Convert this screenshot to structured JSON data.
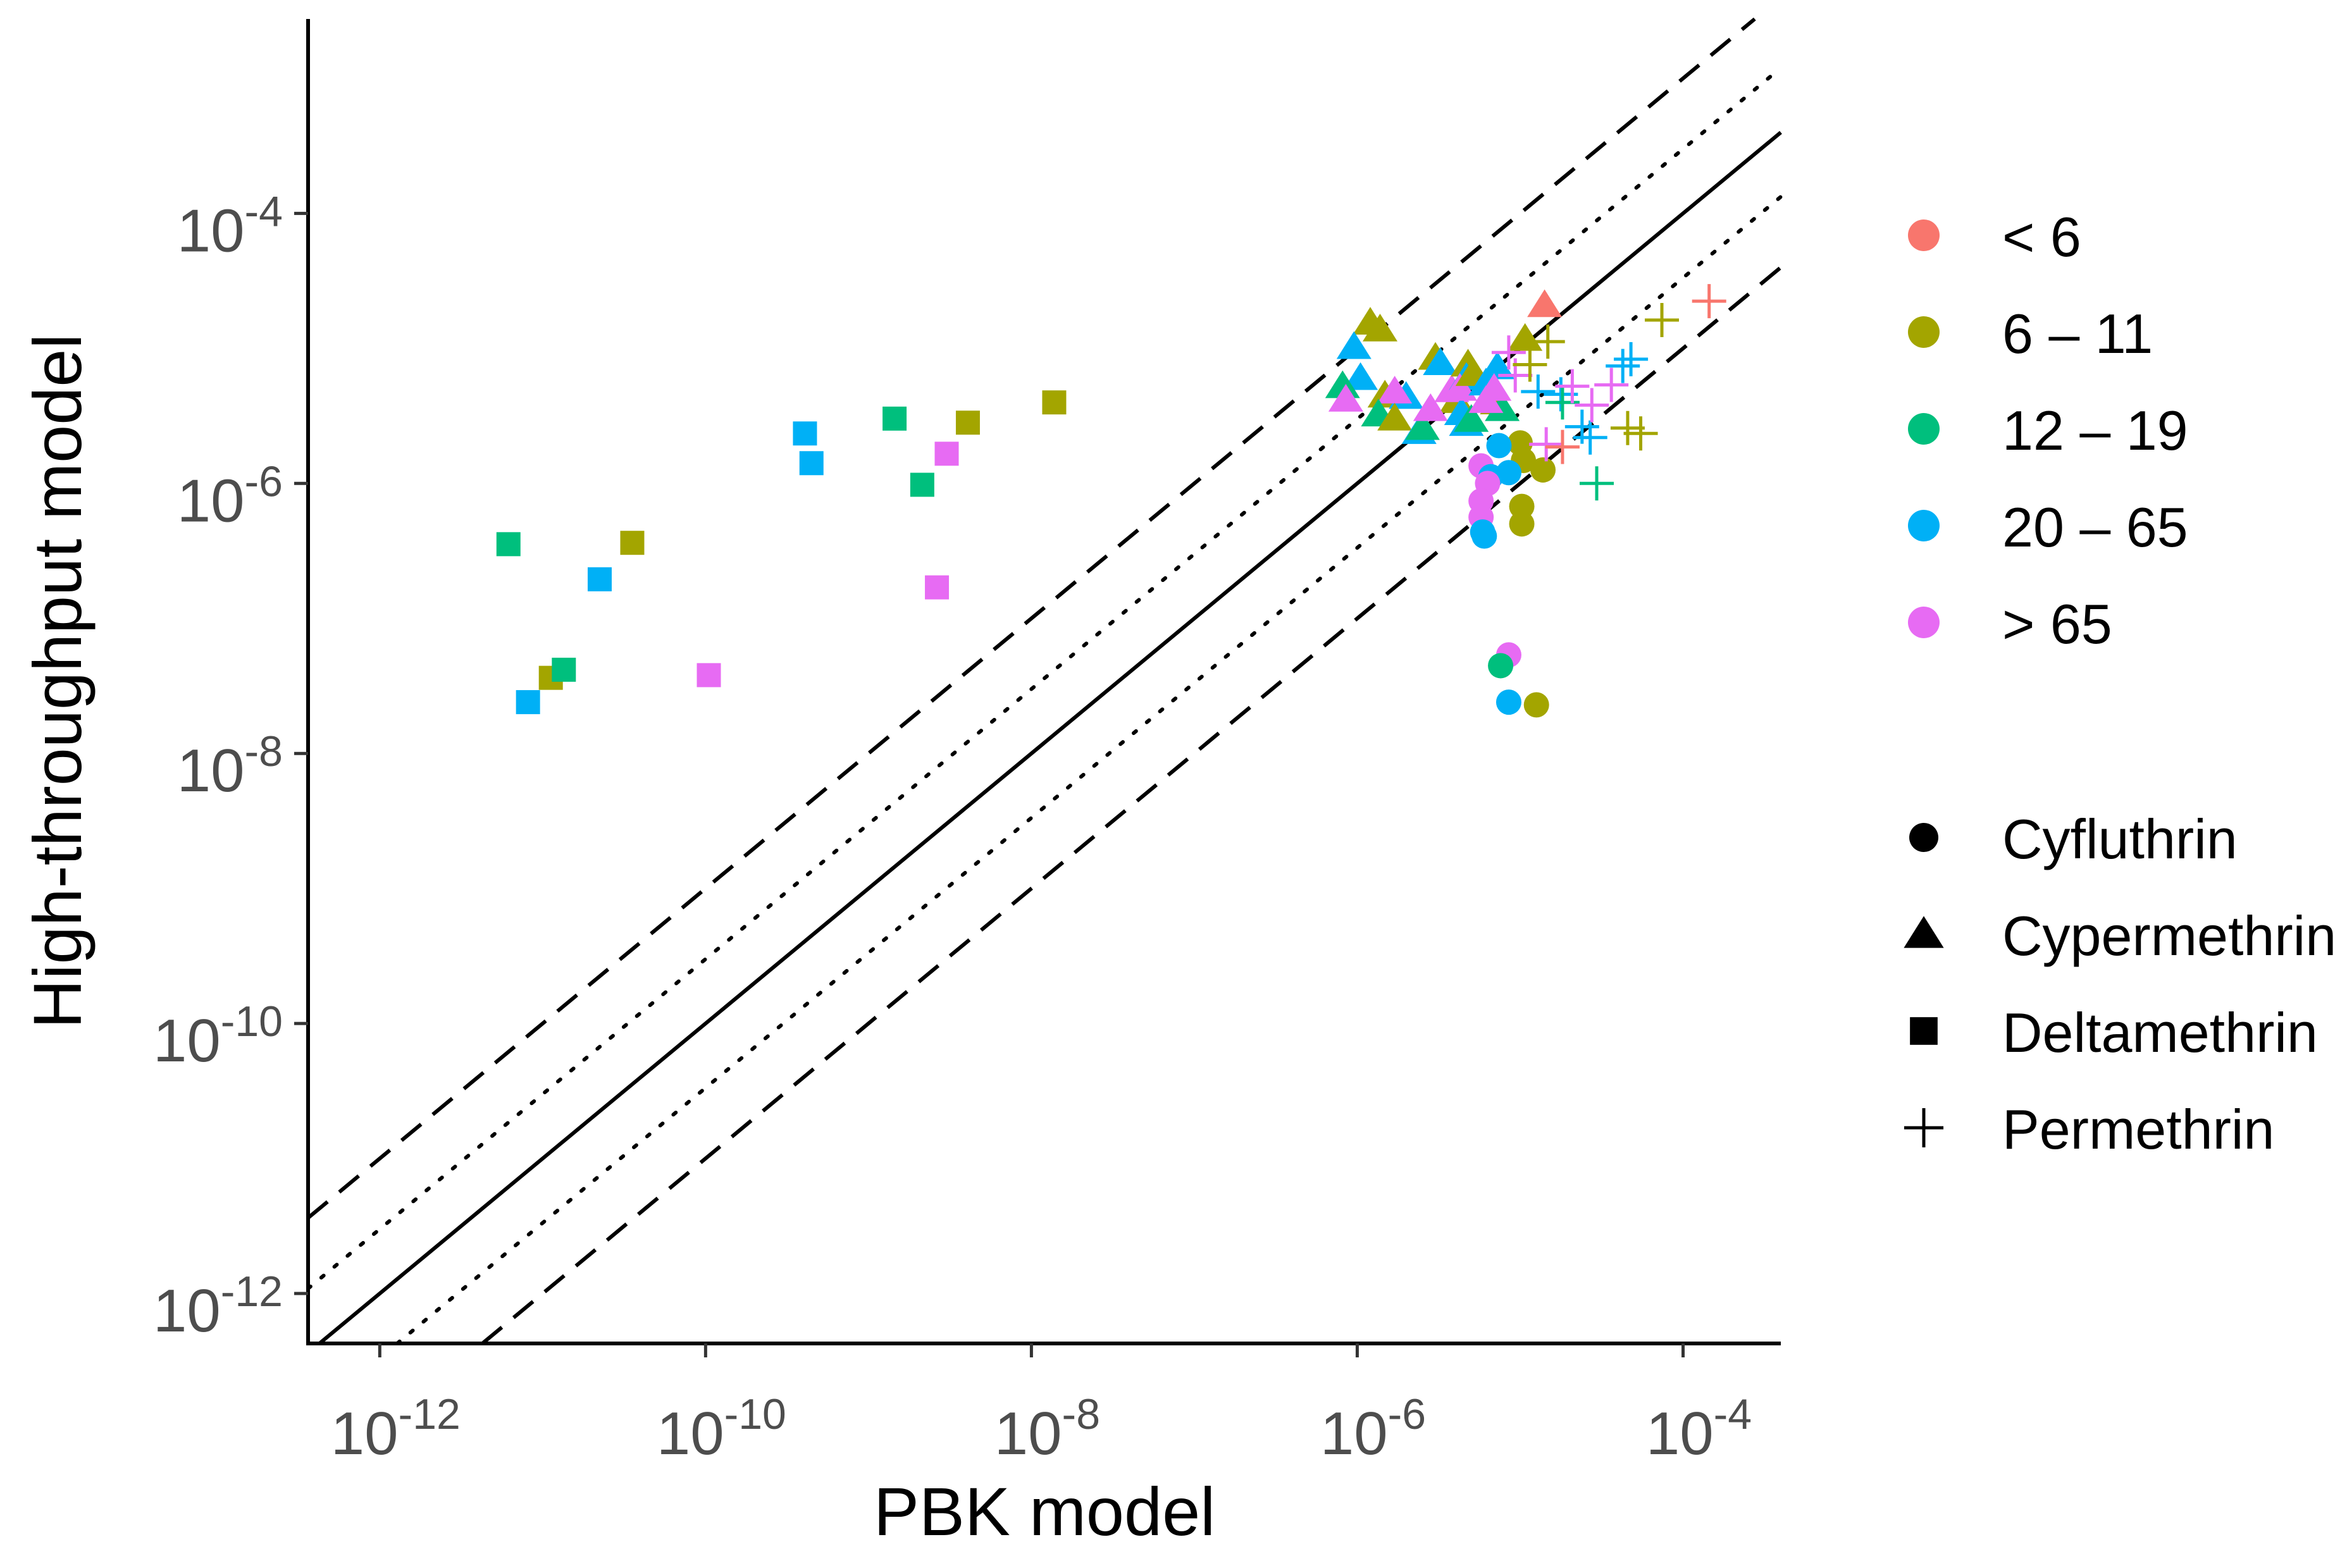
{
  "chart_data": {
    "type": "scatter",
    "xlabel": "PBK model",
    "ylabel": "High-throughput model",
    "x_scale": "log10",
    "y_scale": "log10",
    "xlim_log10": [
      -12.44,
      -3.4
    ],
    "ylim_log10": [
      -12.37,
      -2.56
    ],
    "x_ticks": [
      {
        "exp": -12,
        "base": "10",
        "sup": "-12"
      },
      {
        "exp": -10,
        "base": "10",
        "sup": "-10"
      },
      {
        "exp": -8,
        "base": "10",
        "sup": "-8"
      },
      {
        "exp": -6,
        "base": "10",
        "sup": "-6"
      },
      {
        "exp": -4,
        "base": "10",
        "sup": "-4"
      }
    ],
    "y_ticks": [
      {
        "exp": -12,
        "base": "10",
        "sup": "-12"
      },
      {
        "exp": -10,
        "base": "10",
        "sup": "-10"
      },
      {
        "exp": -8,
        "base": "10",
        "sup": "-8"
      },
      {
        "exp": -6,
        "base": "10",
        "sup": "-6"
      },
      {
        "exp": -4,
        "base": "10",
        "sup": "-4"
      }
    ],
    "reference_lines": [
      {
        "name": "identity",
        "offset_log10": 0,
        "style": "solid"
      },
      {
        "name": "3-fold-above",
        "offset_log10": 0.477,
        "style": "dotted"
      },
      {
        "name": "3-fold-below",
        "offset_log10": -0.477,
        "style": "dotted"
      },
      {
        "name": "10-fold-above",
        "offset_log10": 1,
        "style": "dashed"
      },
      {
        "name": "10-fold-below",
        "offset_log10": -1,
        "style": "dashed"
      }
    ],
    "age_groups": [
      {
        "key": "lt6",
        "label": "< 6",
        "color": "#F8766D"
      },
      {
        "key": "6-11",
        "label": "6 – 11",
        "color": "#A3A500"
      },
      {
        "key": "12-19",
        "label": "12 – 19",
        "color": "#00BF7D"
      },
      {
        "key": "20-65",
        "label": "20 – 65",
        "color": "#00B0F6"
      },
      {
        "key": "gt65",
        "label": "> 65",
        "color": "#E76BF3"
      }
    ],
    "chemicals": [
      {
        "key": "cyf",
        "label": "Cyfluthrin",
        "shape": "circle"
      },
      {
        "key": "cyp",
        "label": "Cypermethrin",
        "shape": "triangle"
      },
      {
        "key": "del",
        "label": "Deltamethrin",
        "shape": "square"
      },
      {
        "key": "per",
        "label": "Permethrin",
        "shape": "plus"
      }
    ],
    "points_log10": [
      {
        "chem": "del",
        "age": "12-19",
        "x": -11.21,
        "y": -6.45
      },
      {
        "chem": "del",
        "age": "6-11",
        "x": -10.45,
        "y": -6.44
      },
      {
        "chem": "del",
        "age": "20-65",
        "x": -10.65,
        "y": -6.71
      },
      {
        "chem": "del",
        "age": "6-11",
        "x": -10.95,
        "y": -7.44
      },
      {
        "chem": "del",
        "age": "12-19",
        "x": -10.87,
        "y": -7.38
      },
      {
        "chem": "del",
        "age": "20-65",
        "x": -11.09,
        "y": -7.62
      },
      {
        "chem": "del",
        "age": "gt65",
        "x": -9.98,
        "y": -7.42
      },
      {
        "chem": "del",
        "age": "20-65",
        "x": -9.39,
        "y": -5.63
      },
      {
        "chem": "del",
        "age": "20-65",
        "x": -9.35,
        "y": -5.85
      },
      {
        "chem": "del",
        "age": "12-19",
        "x": -8.84,
        "y": -5.52
      },
      {
        "chem": "del",
        "age": "12-19",
        "x": -8.67,
        "y": -6.01
      },
      {
        "chem": "del",
        "age": "gt65",
        "x": -8.52,
        "y": -5.78
      },
      {
        "chem": "del",
        "age": "6-11",
        "x": -8.39,
        "y": -5.55
      },
      {
        "chem": "del",
        "age": "gt65",
        "x": -8.58,
        "y": -6.77
      },
      {
        "chem": "del",
        "age": "6-11",
        "x": -7.86,
        "y": -5.4
      },
      {
        "chem": "cyp",
        "age": "6-11",
        "x": -5.92,
        "y": -4.81
      },
      {
        "chem": "cyp",
        "age": "6-11",
        "x": -5.86,
        "y": -4.86
      },
      {
        "chem": "cyp",
        "age": "20-65",
        "x": -6.02,
        "y": -4.99
      },
      {
        "chem": "cyp",
        "age": "20-65",
        "x": -5.98,
        "y": -5.22
      },
      {
        "chem": "cyp",
        "age": "12-19",
        "x": -6.09,
        "y": -5.28
      },
      {
        "chem": "cyp",
        "age": "gt65",
        "x": -6.07,
        "y": -5.38
      },
      {
        "chem": "cyp",
        "age": "6-11",
        "x": -5.83,
        "y": -5.35
      },
      {
        "chem": "cyp",
        "age": "20-65",
        "x": -5.7,
        "y": -5.36
      },
      {
        "chem": "cyp",
        "age": "gt65",
        "x": -5.77,
        "y": -5.32
      },
      {
        "chem": "cyp",
        "age": "12-19",
        "x": -5.87,
        "y": -5.49
      },
      {
        "chem": "cyp",
        "age": "6-11",
        "x": -5.77,
        "y": -5.52
      },
      {
        "chem": "cyp",
        "age": "20-65",
        "x": -5.62,
        "y": -5.62
      },
      {
        "chem": "cyp",
        "age": "12-19",
        "x": -5.6,
        "y": -5.59
      },
      {
        "chem": "cyp",
        "age": "6-11",
        "x": -5.52,
        "y": -5.07
      },
      {
        "chem": "cyp",
        "age": "20-65",
        "x": -5.49,
        "y": -5.11
      },
      {
        "chem": "cyp",
        "age": "6-11",
        "x": -5.39,
        "y": -5.39
      },
      {
        "chem": "cyp",
        "age": "gt65",
        "x": -5.42,
        "y": -5.31
      },
      {
        "chem": "cyp",
        "age": "gt65",
        "x": -5.55,
        "y": -5.45
      },
      {
        "chem": "cyp",
        "age": "6-11",
        "x": -5.32,
        "y": -5.12
      },
      {
        "chem": "cyp",
        "age": "20-65",
        "x": -5.33,
        "y": -5.22
      },
      {
        "chem": "cyp",
        "age": "20-65",
        "x": -5.36,
        "y": -5.48
      },
      {
        "chem": "cyp",
        "age": "gt65",
        "x": -5.37,
        "y": -5.3
      },
      {
        "chem": "cyp",
        "age": "20-65",
        "x": -5.33,
        "y": -5.56
      },
      {
        "chem": "cyp",
        "age": "6-11",
        "x": -5.29,
        "y": -5.19
      },
      {
        "chem": "cyp",
        "age": "20-65",
        "x": -5.21,
        "y": -5.26
      },
      {
        "chem": "cyp",
        "age": "12-19",
        "x": -5.3,
        "y": -5.53
      },
      {
        "chem": "cyp",
        "age": "20-65",
        "x": -5.14,
        "y": -5.14
      },
      {
        "chem": "cyp",
        "age": "6-11",
        "x": -5.14,
        "y": -5.4
      },
      {
        "chem": "cyp",
        "age": "12-19",
        "x": -5.11,
        "y": -5.45
      },
      {
        "chem": "cyp",
        "age": "gt65",
        "x": -5.16,
        "y": -5.3
      },
      {
        "chem": "cyp",
        "age": "gt65",
        "x": -5.21,
        "y": -5.39
      },
      {
        "chem": "cyp",
        "age": "6-11",
        "x": -4.97,
        "y": -4.93
      },
      {
        "chem": "cyp",
        "age": "lt6",
        "x": -4.85,
        "y": -4.68
      },
      {
        "chem": "cyf",
        "age": "6-11",
        "x": -5.0,
        "y": -5.7
      },
      {
        "chem": "cyf",
        "age": "20-65",
        "x": -5.13,
        "y": -5.72
      },
      {
        "chem": "cyf",
        "age": "6-11",
        "x": -4.98,
        "y": -5.83
      },
      {
        "chem": "cyf",
        "age": "20-65",
        "x": -5.07,
        "y": -5.92
      },
      {
        "chem": "cyf",
        "age": "gt65",
        "x": -5.24,
        "y": -5.87
      },
      {
        "chem": "cyf",
        "age": "20-65",
        "x": -5.18,
        "y": -5.95
      },
      {
        "chem": "cyf",
        "age": "gt65",
        "x": -5.2,
        "y": -6.0
      },
      {
        "chem": "cyf",
        "age": "6-11",
        "x": -4.86,
        "y": -5.9
      },
      {
        "chem": "cyf",
        "age": "6-11",
        "x": -4.99,
        "y": -6.17
      },
      {
        "chem": "cyf",
        "age": "gt65",
        "x": -5.24,
        "y": -6.13
      },
      {
        "chem": "cyf",
        "age": "gt65",
        "x": -5.24,
        "y": -6.25
      },
      {
        "chem": "cyf",
        "age": "6-11",
        "x": -4.99,
        "y": -6.3
      },
      {
        "chem": "cyf",
        "age": "20-65",
        "x": -5.23,
        "y": -6.36
      },
      {
        "chem": "cyf",
        "age": "20-65",
        "x": -5.22,
        "y": -6.39
      },
      {
        "chem": "cyf",
        "age": "gt65",
        "x": -5.07,
        "y": -7.27
      },
      {
        "chem": "cyf",
        "age": "12-19",
        "x": -5.12,
        "y": -7.35
      },
      {
        "chem": "cyf",
        "age": "20-65",
        "x": -5.07,
        "y": -7.62
      },
      {
        "chem": "cyf",
        "age": "6-11",
        "x": -4.9,
        "y": -7.64
      },
      {
        "chem": "per",
        "age": "lt6",
        "x": -3.84,
        "y": -4.65
      },
      {
        "chem": "per",
        "age": "6-11",
        "x": -4.13,
        "y": -4.79
      },
      {
        "chem": "per",
        "age": "20-65",
        "x": -4.32,
        "y": -5.08
      },
      {
        "chem": "per",
        "age": "20-65",
        "x": -4.37,
        "y": -5.13
      },
      {
        "chem": "per",
        "age": "gt65",
        "x": -5.07,
        "y": -5.03
      },
      {
        "chem": "per",
        "age": "gt65",
        "x": -5.03,
        "y": -5.2
      },
      {
        "chem": "per",
        "age": "6-11",
        "x": -4.83,
        "y": -4.95
      },
      {
        "chem": "per",
        "age": "6-11",
        "x": -4.94,
        "y": -5.12
      },
      {
        "chem": "per",
        "age": "20-65",
        "x": -4.89,
        "y": -5.32
      },
      {
        "chem": "per",
        "age": "20-65",
        "x": -4.75,
        "y": -5.34
      },
      {
        "chem": "per",
        "age": "12-19",
        "x": -4.74,
        "y": -5.4
      },
      {
        "chem": "per",
        "age": "gt65",
        "x": -4.68,
        "y": -5.28
      },
      {
        "chem": "per",
        "age": "gt65",
        "x": -4.44,
        "y": -5.27
      },
      {
        "chem": "per",
        "age": "20-65",
        "x": -4.62,
        "y": -5.58
      },
      {
        "chem": "per",
        "age": "20-65",
        "x": -4.57,
        "y": -5.66
      },
      {
        "chem": "per",
        "age": "12-19",
        "x": -4.53,
        "y": -6.0
      },
      {
        "chem": "per",
        "age": "6-11",
        "x": -4.34,
        "y": -5.59
      },
      {
        "chem": "per",
        "age": "6-11",
        "x": -4.26,
        "y": -5.63
      },
      {
        "chem": "per",
        "age": "gt65",
        "x": -4.84,
        "y": -5.71
      },
      {
        "chem": "per",
        "age": "lt6",
        "x": -4.74,
        "y": -5.73
      },
      {
        "chem": "per",
        "age": "gt65",
        "x": -4.56,
        "y": -5.42
      }
    ]
  }
}
